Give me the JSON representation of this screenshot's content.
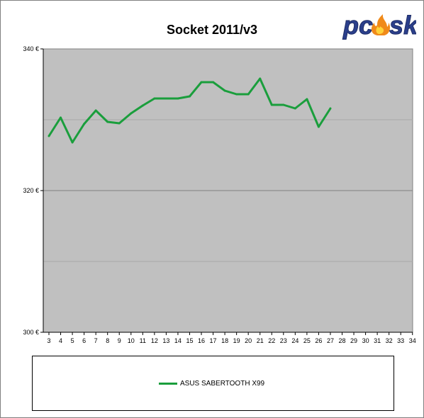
{
  "chart_data": {
    "type": "line",
    "title": "Socket 2011/v3",
    "xlabel": "",
    "ylabel": "",
    "x": [
      3,
      4,
      5,
      6,
      7,
      8,
      9,
      10,
      11,
      12,
      13,
      14,
      15,
      16,
      17,
      18,
      19,
      20,
      21,
      22,
      23,
      24,
      25,
      26,
      27,
      28,
      29,
      30,
      31,
      32,
      33,
      34
    ],
    "ylim": [
      300,
      340
    ],
    "y_ticks": [
      "300 €",
      "320 €",
      "340 €"
    ],
    "grid": true,
    "legend_position": "bottom",
    "series": [
      {
        "name": "ASUS SABERTOOTH X99",
        "color": "#1a9e3c",
        "x": [
          3,
          4,
          5,
          6,
          7,
          8,
          9,
          10,
          11,
          12,
          13,
          14,
          15,
          16,
          17,
          18,
          19,
          20,
          21,
          22,
          23,
          24,
          25,
          26,
          27
        ],
        "values": [
          327.7,
          330.3,
          326.8,
          329.4,
          331.3,
          329.7,
          329.5,
          330.9,
          332.0,
          333.0,
          333.0,
          333.0,
          333.3,
          335.3,
          335.3,
          334.1,
          333.6,
          333.6,
          335.8,
          332.1,
          332.1,
          331.6,
          332.9,
          329.0,
          331.6
        ]
      }
    ],
    "colors": {
      "plot_bg": "#c0c0c0",
      "gridline": "#808080"
    }
  },
  "logo": {
    "text_pc": "pc",
    "text_sk": "sk"
  }
}
